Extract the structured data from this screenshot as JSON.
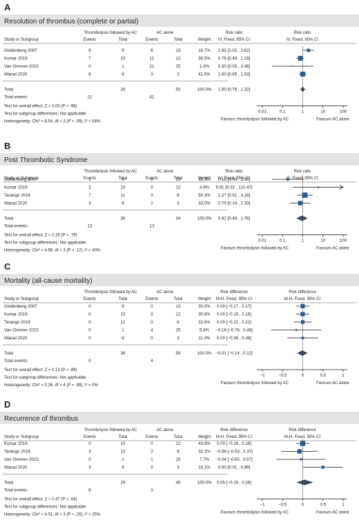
{
  "chart_data": [
    {
      "letter": "A",
      "type": "forest",
      "title": "Resolution of thrombus (complete or partial)",
      "group1_label": "Thrombolysis followed by AC",
      "group2_label": "AC alone",
      "columns": {
        "study": "Study or Subgroup",
        "events": "Events",
        "total": "Total",
        "weight": "Weight",
        "measure": "Risk ratio",
        "method": "IV, Fixed, 95% CI"
      },
      "plot_header": {
        "measure": "Risk ratio",
        "method": "IV, Fixed, 95% CI"
      },
      "scale": "log",
      "null_value": 1,
      "xlim": [
        0.01,
        100
      ],
      "ticks": [
        {
          "v": 0.01,
          "label": "0.01"
        },
        {
          "v": 0.1,
          "label": "0.1"
        },
        {
          "v": 1,
          "label": "1"
        },
        {
          "v": 10,
          "label": "10"
        },
        {
          "v": 100,
          "label": "100"
        }
      ],
      "favours_left": "Favours thrombolysis followed by AC",
      "favours_right": "Favours AC alone",
      "studies": [
        {
          "name": "Goldenberg 2007",
          "e1": "8",
          "t1": "9",
          "e2": "6",
          "t2": "13",
          "weight": "18.7%",
          "ci_text": "1.93 [1.02 , 3.62]",
          "est": 1.93,
          "lo": 1.02,
          "hi": 3.62,
          "w": 18.7
        },
        {
          "name": "Kumar 2019",
          "e1": "7",
          "t1": "10",
          "e2": "11",
          "t2": "12",
          "weight": "38.5%",
          "ci_text": "0.76 [0.49 , 1.19]",
          "est": 0.76,
          "lo": 0.49,
          "hi": 1.19,
          "w": 38.5
        },
        {
          "name": "Van Ommen 2023",
          "e1": "0",
          "t1": "1",
          "e2": "21",
          "t2": "25",
          "weight": "1.3%",
          "ci_text": "0.30 [0.03 , 3.36]",
          "est": 0.3,
          "lo": 0.03,
          "hi": 3.36,
          "w": 1.3
        },
        {
          "name": "Warad 2020",
          "e1": "6",
          "t1": "6",
          "e2": "3",
          "t2": "3",
          "weight": "41.5%",
          "ci_text": "1.00 [0.65 , 1.53]",
          "est": 1.0,
          "lo": 0.65,
          "hi": 1.53,
          "w": 41.5
        }
      ],
      "total": {
        "label": "Total",
        "t1": "26",
        "t2": "53",
        "weight": "100.0%",
        "ci_text": "1.00 [0.76 , 1.32]",
        "est": 1.0,
        "lo": 0.76,
        "hi": 1.32
      },
      "total_events": {
        "label": "Total events:",
        "e1": "21",
        "e2": "41"
      },
      "notes": [
        "Test for overall effect: Z = 0.03 (P = .98)",
        "Test for subgroup differences: Not applicable",
        "Heterogeneity: Chi² = 6.54, df = 3 (P = .09); I² = 54%"
      ]
    },
    {
      "letter": "B",
      "type": "forest",
      "title": "Post Thrombotic Syndrome",
      "group1_label": "Thrombolysis followed by AC",
      "group2_label": "AC alone",
      "columns": {
        "study": "Study or Subgroup",
        "events": "Events",
        "total": "Total",
        "weight": "Weight",
        "measure": "Risk ratio",
        "method": "IV, Fixed, 95% CI"
      },
      "plot_header": {
        "measure": "Risk ratio",
        "method": "IV, Fixed, 95% CI"
      },
      "scale": "log",
      "null_value": 1,
      "xlim": [
        0.01,
        100
      ],
      "ticks": [
        {
          "v": 0.01,
          "label": "0.01"
        },
        {
          "v": 0.1,
          "label": "0.1"
        },
        {
          "v": 1,
          "label": "1"
        },
        {
          "v": 10,
          "label": "10"
        },
        {
          "v": 100,
          "label": "100"
        }
      ],
      "favours_left": "Favours thrombolysis followed by AC",
      "favours_right": "Favours AC alone",
      "studies": [
        {
          "name": "Goldenberg 2007",
          "e1": "1",
          "t1": "9",
          "e2": "8",
          "t2": "13",
          "weight": "11.7%",
          "ci_text": "0.18 [0.03 , 1.20]",
          "est": 0.18,
          "lo": 0.03,
          "hi": 1.2,
          "w": 11.7
        },
        {
          "name": "Kumar 2019",
          "e1": "2",
          "t1": "10",
          "e2": "0",
          "t2": "12",
          "weight": "4.9%",
          "ci_text": "5.91 [0.32 , 110.47]",
          "est": 5.91,
          "lo": 0.32,
          "hi": 110.47,
          "w": 4.9
        },
        {
          "name": "Tarango 2018",
          "e1": "7",
          "t1": "11",
          "e2": "3",
          "t2": "6",
          "weight": "50.3%",
          "ci_text": "1.27 [0.51 , 3.18]",
          "est": 1.27,
          "lo": 0.51,
          "hi": 3.18,
          "w": 50.3
        },
        {
          "name": "Warad 2020",
          "e1": "3",
          "t1": "6",
          "e2": "2",
          "t2": "3",
          "weight": "33.0%",
          "ci_text": "0.75 [0.24 , 2.33]",
          "est": 0.75,
          "lo": 0.24,
          "hi": 2.33,
          "w": 33.0
        }
      ],
      "total": {
        "label": "Total",
        "t1": "36",
        "t2": "34",
        "weight": "100.0%",
        "ci_text": "0.92 [0.48 , 1.76]",
        "est": 0.92,
        "lo": 0.48,
        "hi": 1.76
      },
      "total_events": {
        "label": "Total events:",
        "e1": "13",
        "e2": "13"
      },
      "notes": [
        "Test for overall effect: Z = 0.26 (P = .79)",
        "Test for subgroup differences: Not applicable",
        "Heterogeneity: Chi² = 4.99, df = 3 (P = .17); I² = 40%"
      ]
    },
    {
      "letter": "C",
      "type": "forest",
      "title": "Mortality (all-cause mortality)",
      "group1_label": "Thrombolysis followed by AC",
      "group2_label": "AC alone",
      "columns": {
        "study": "Study or Subgroup",
        "events": "Events",
        "total": "Total",
        "weight": "Weight",
        "measure": "Risk difference",
        "method": "M-H, Fixed, 95% CI"
      },
      "plot_header": {
        "measure": "Risk difference",
        "method": "M-H, Fixed, 95% CI"
      },
      "scale": "linear",
      "null_value": 0,
      "xlim": [
        -1,
        1
      ],
      "ticks": [
        {
          "v": -1,
          "label": "−1"
        },
        {
          "v": -0.5,
          "label": "−0.5"
        },
        {
          "v": 0,
          "label": "0"
        },
        {
          "v": 0.5,
          "label": "0.5"
        },
        {
          "v": 1,
          "label": "1"
        }
      ],
      "favours_left": "Favours thrombolysis followed by AC",
      "favours_right": "Favours AC alone",
      "studies": [
        {
          "name": "Goldenberg 2007",
          "e1": "0",
          "t1": "9",
          "e2": "0",
          "t2": "13",
          "weight": "30.0%",
          "ci_text": "0.00 [−0.17 , 0.17]",
          "est": 0.0,
          "lo": -0.17,
          "hi": 0.17,
          "w": 30.0
        },
        {
          "name": "Kumar 2019",
          "e1": "0",
          "t1": "10",
          "e2": "0",
          "t2": "12",
          "weight": "30.8%",
          "ci_text": "0.00 [−0.16 , 0.16]",
          "est": 0.0,
          "lo": -0.16,
          "hi": 0.16,
          "w": 30.8
        },
        {
          "name": "Tarango 2018",
          "e1": "0",
          "t1": "12",
          "e2": "0",
          "t2": "6",
          "weight": "22.6%",
          "ci_text": "0.00 [−0.22 , 0.22]",
          "est": 0.0,
          "lo": -0.22,
          "hi": 0.22,
          "w": 22.6
        },
        {
          "name": "Van Ommen 2023",
          "e1": "0",
          "t1": "1",
          "e2": "4",
          "t2": "25",
          "weight": "5.4%",
          "ci_text": "−0.16 [−0.78 , 0.46]",
          "est": -0.16,
          "lo": -0.78,
          "hi": 0.46,
          "w": 5.4
        },
        {
          "name": "Warad 2020",
          "e1": "0",
          "t1": "6",
          "e2": "0",
          "t2": "3",
          "weight": "11.3%",
          "ci_text": "0.00 [−0.38 , 0.38]",
          "est": 0.0,
          "lo": -0.38,
          "hi": 0.38,
          "w": 11.3
        }
      ],
      "total": {
        "label": "Total",
        "t1": "38",
        "t2": "59",
        "weight": "100.0%",
        "ci_text": "−0.01 [−0.14 , 0.12]",
        "est": -0.01,
        "lo": -0.14,
        "hi": 0.12
      },
      "total_events": {
        "label": "Total events:",
        "e1": "0",
        "e2": "4"
      },
      "notes": [
        "Test for overall effect: Z = 0.13 (P = .89)",
        "Test for subgroup differences: Not applicable",
        "Heterogeneity: Chi² = 0.26, df = 4 (P = .99); I² = 0%"
      ]
    },
    {
      "letter": "D",
      "type": "forest",
      "title": "Recurrence of thrombus",
      "group1_label": "Thrombolysis followed by AC",
      "group2_label": "AC alone",
      "columns": {
        "study": "Study or Subgroup",
        "events": "Events",
        "total": "Total",
        "weight": "Weight",
        "measure": "Risk difference",
        "method": "M-H, Fixed, 95% CI"
      },
      "plot_header": {
        "measure": "Risk difference",
        "method": "M-H, Fixed, 95% CI"
      },
      "scale": "linear",
      "null_value": 0,
      "xlim": [
        -1,
        1
      ],
      "ticks": [
        {
          "v": -1,
          "label": "−1"
        },
        {
          "v": -0.5,
          "label": "−0.5"
        },
        {
          "v": 0,
          "label": "0"
        },
        {
          "v": 0.5,
          "label": "0.5"
        },
        {
          "v": 1,
          "label": "1"
        }
      ],
      "favours_left": "Favours thrombolysis followed by AC",
      "favours_right": "Favours AC alone",
      "studies": [
        {
          "name": "Kumar 2019",
          "e1": "0",
          "t1": "10",
          "e2": "0",
          "t2": "12",
          "weight": "43.9%",
          "ci_text": "0.00 [−0.16 , 0.16]",
          "est": 0.0,
          "lo": -0.16,
          "hi": 0.16,
          "w": 43.9
        },
        {
          "name": "Tarango 2018",
          "e1": "3",
          "t1": "12",
          "e2": "2",
          "t2": "6",
          "weight": "32.2%",
          "ci_text": "−0.08 [−0.53 , 0.37]",
          "est": -0.08,
          "lo": -0.53,
          "hi": 0.37,
          "w": 32.2
        },
        {
          "name": "Van Ommen 2023",
          "e1": "0",
          "t1": "1",
          "e2": "1",
          "t2": "25",
          "weight": "7.7%",
          "ci_text": "−0.04 [−0.65 , 0.57]",
          "est": -0.04,
          "lo": -0.65,
          "hi": 0.57,
          "w": 7.7
        },
        {
          "name": "Warad 2020",
          "e1": "3",
          "t1": "6",
          "e2": "0",
          "t2": "3",
          "weight": "16.1%",
          "ci_text": "0.50 [0.01 , 0.99]",
          "est": 0.5,
          "lo": 0.01,
          "hi": 0.99,
          "w": 16.1
        }
      ],
      "total": {
        "label": "Total",
        "t1": "29",
        "t2": "46",
        "weight": "100.0%",
        "ci_text": "0.05 [−0.16 , 0.26]",
        "est": 0.05,
        "lo": -0.16,
        "hi": 0.26
      },
      "total_events": {
        "label": "Total events:",
        "e1": "6",
        "e2": "3"
      },
      "notes": [
        "Test for overall effect: Z = 0.47 (P = .64)",
        "Test for subgroup differences: Not applicable",
        "Heterogeneity: Chi² = 4.01, df = 3 (P = .26); I² = 25%"
      ]
    }
  ],
  "colors": {
    "banner": "#e3e3e3",
    "marker": "#2a5a8a",
    "diamond": "#3a4a5c",
    "text": "#222222",
    "line": "#555555"
  }
}
